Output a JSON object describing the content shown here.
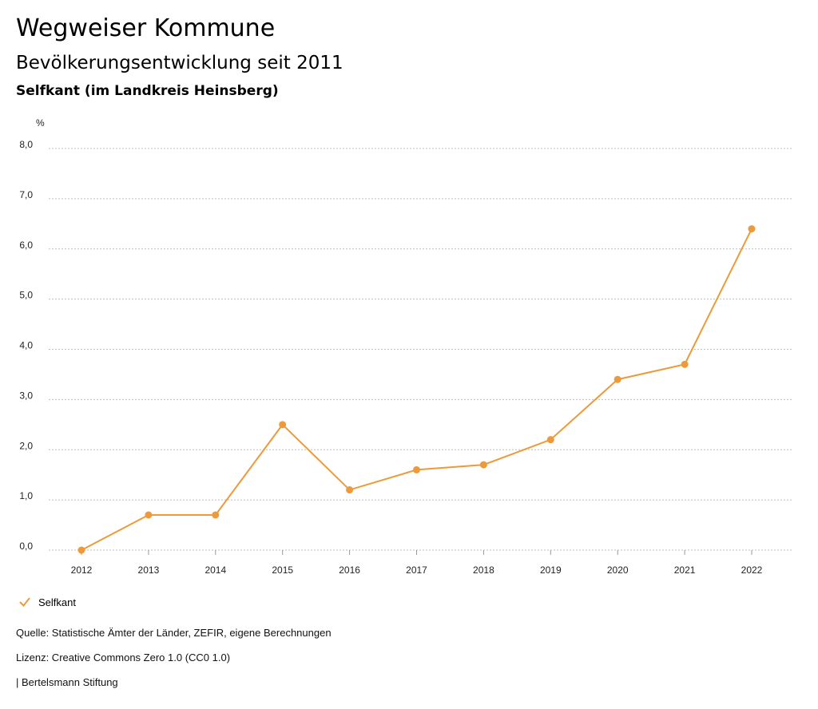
{
  "header": {
    "title": "Wegweiser Kommune",
    "subtitle": "Bevölkerungsentwicklung seit 2011",
    "region": "Selfkant (im Landkreis Heinsberg)"
  },
  "chart_data": {
    "type": "line",
    "unit_label": "%",
    "x": [
      "2012",
      "2013",
      "2014",
      "2015",
      "2016",
      "2017",
      "2018",
      "2019",
      "2020",
      "2021",
      "2022"
    ],
    "series": [
      {
        "name": "Selfkant",
        "color": "#ec9a3a",
        "values": [
          0.0,
          0.7,
          0.7,
          2.5,
          1.2,
          1.6,
          1.7,
          2.2,
          3.4,
          3.7,
          6.4
        ]
      }
    ],
    "y_ticks": [
      "0,0",
      "1,0",
      "2,0",
      "3,0",
      "4,0",
      "5,0",
      "6,0",
      "7,0",
      "8,0"
    ],
    "ylim": [
      0,
      8
    ],
    "grid": true,
    "legend_position": "bottom-left"
  },
  "legend": {
    "label": "Selfkant",
    "icon": "check-icon"
  },
  "footer": {
    "source": "Quelle: Statistische Ämter der Länder, ZEFIR, eigene Berechnungen",
    "license": "Lizenz: Creative Commons Zero 1.0 (CC0 1.0)",
    "publisher": "| Bertelsmann Stiftung"
  }
}
